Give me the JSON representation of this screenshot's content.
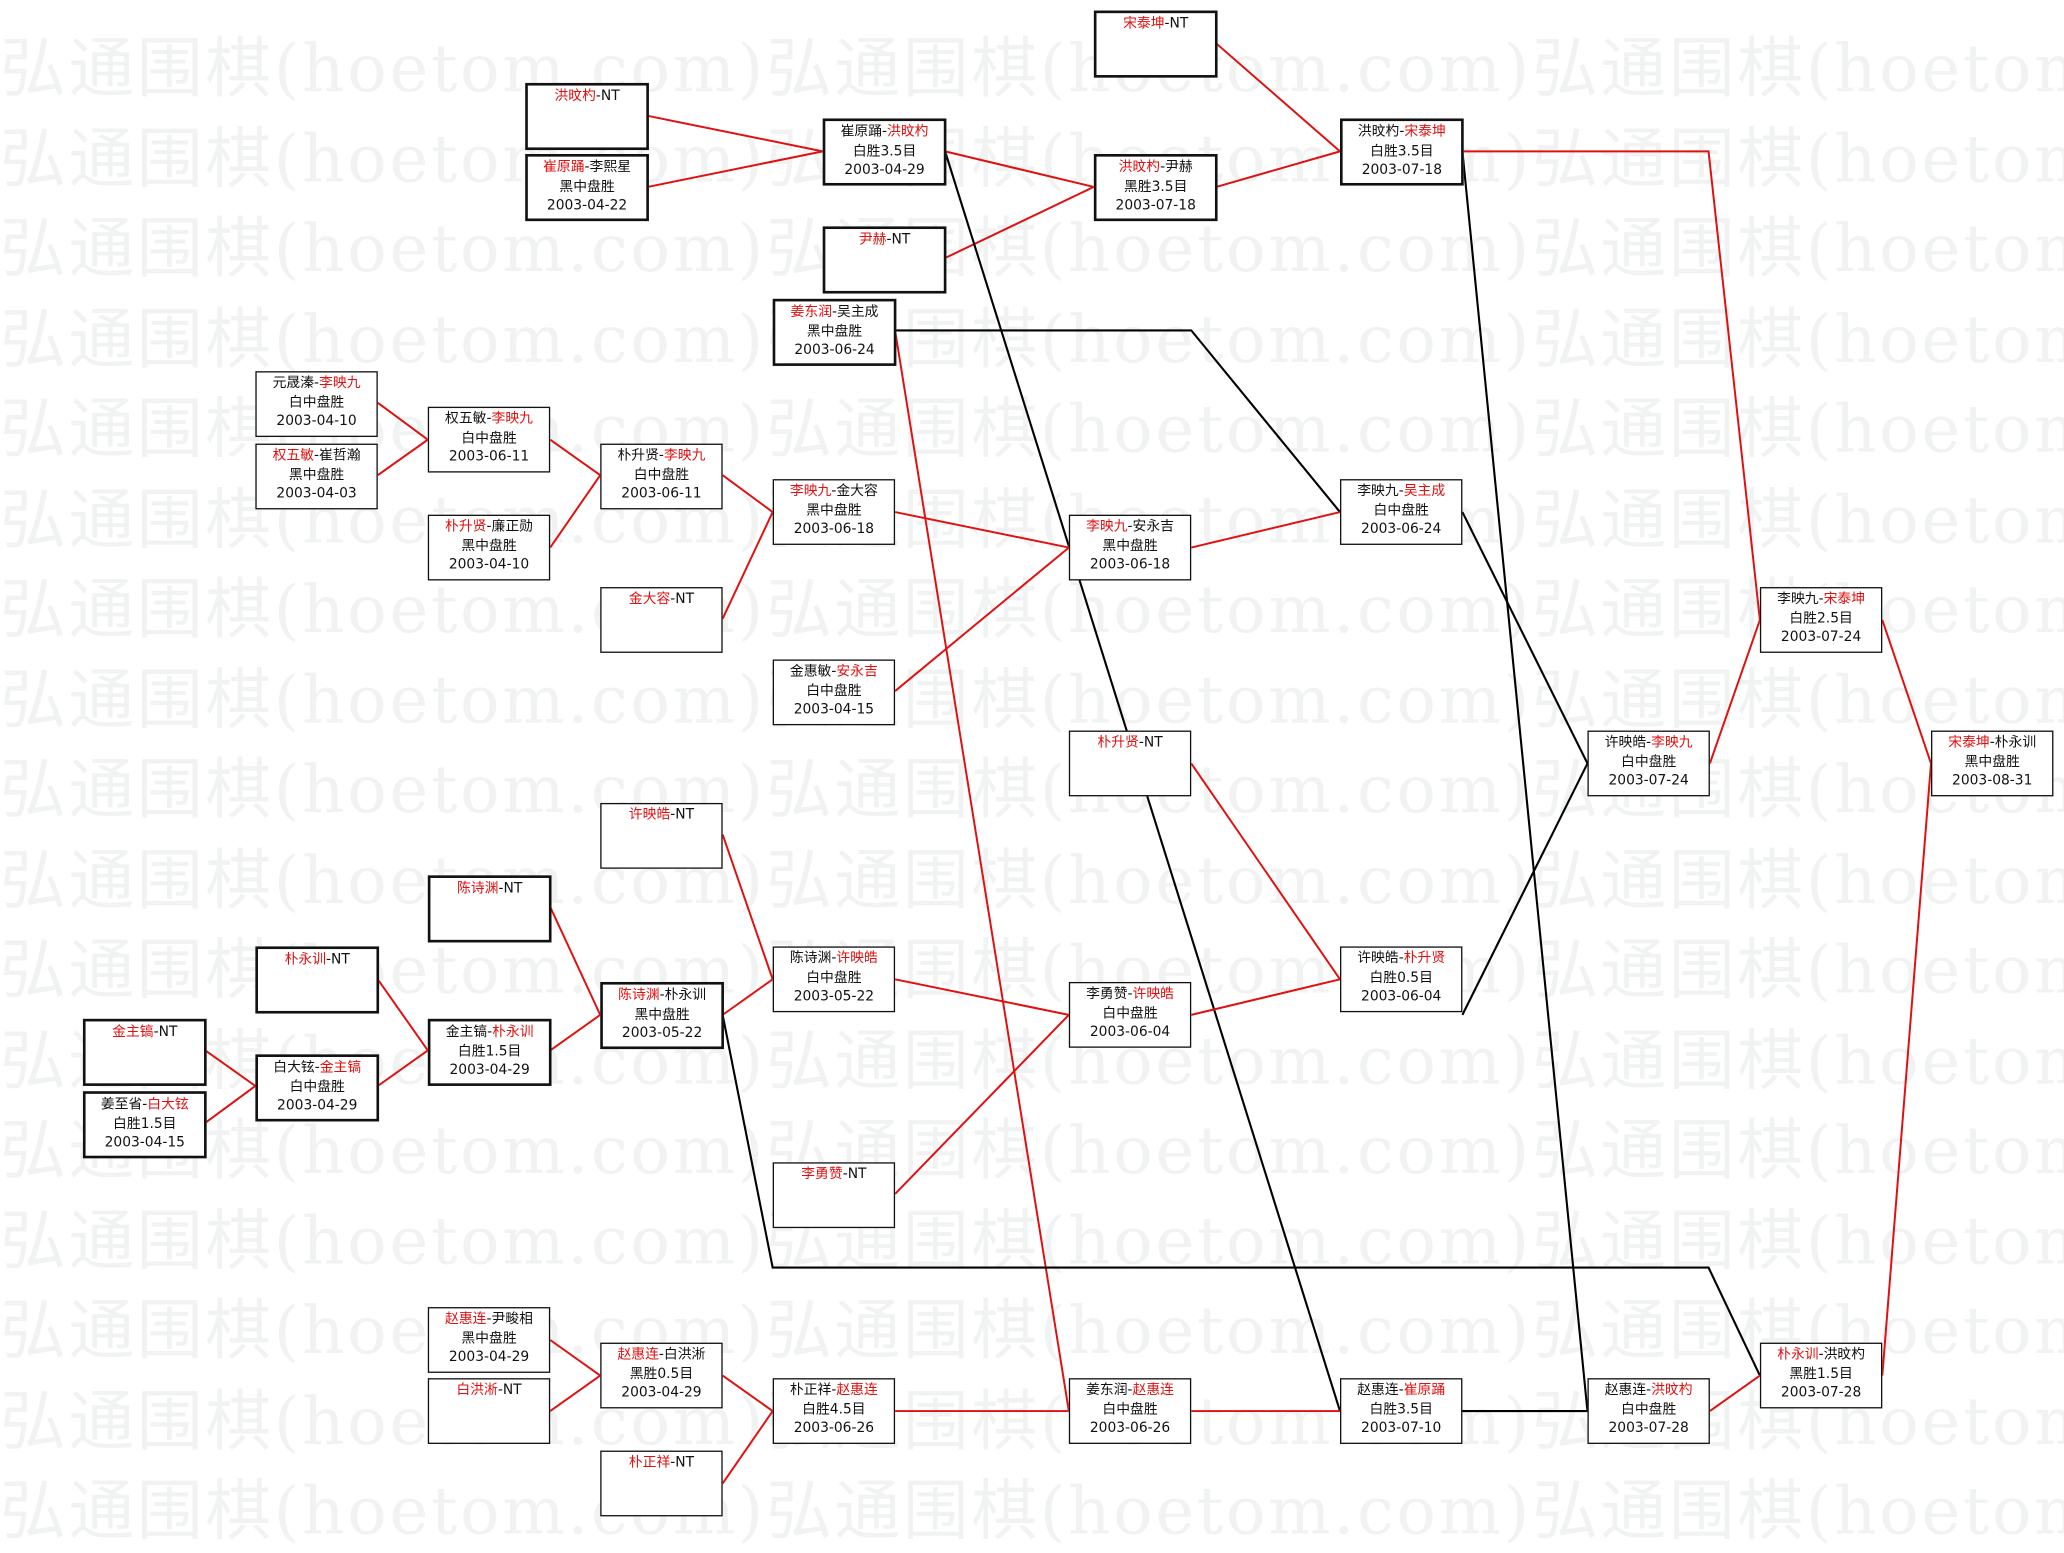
{
  "watermark": "弘通围棋(hoetom.com)弘通围棋(hoetom.com)弘通围棋(hoetom.com)弘通围棋(hoetom.com)",
  "colors": {
    "winner": "#e01010",
    "text": "#111111",
    "advance_line": "#e01010",
    "loser_line": "#000000"
  },
  "boxes": [
    {
      "id": "A",
      "p1": "宋泰坤",
      "p2": "NT",
      "winner": 1
    },
    {
      "id": "B",
      "p1": "洪旼杓",
      "p2": "NT",
      "winner": 1
    },
    {
      "id": "C",
      "p1": "崔原踊",
      "p2": "李熙星",
      "winner": 1,
      "result": "黑中盘胜",
      "date": "2003-04-22"
    },
    {
      "id": "D",
      "p1": "崔原踊",
      "p2": "洪旼杓",
      "winner": 2,
      "result": "白胜3.5目",
      "date": "2003-04-29"
    },
    {
      "id": "E",
      "p1": "洪旼杓",
      "p2": "尹赫",
      "winner": 1,
      "result": "黑胜3.5目",
      "date": "2003-07-18"
    },
    {
      "id": "F",
      "p1": "洪旼杓",
      "p2": "宋泰坤",
      "winner": 2,
      "result": "白胜3.5目",
      "date": "2003-07-18"
    },
    {
      "id": "G",
      "p1": "尹赫",
      "p2": "NT",
      "winner": 1
    },
    {
      "id": "H",
      "p1": "姜东润",
      "p2": "吴主成",
      "winner": 1,
      "result": "黑中盘胜",
      "date": "2003-06-24"
    },
    {
      "id": "I",
      "p1": "元晟溱",
      "p2": "李映九",
      "winner": 2,
      "result": "白中盘胜",
      "date": "2003-04-10"
    },
    {
      "id": "J",
      "p1": "权五敏",
      "p2": "崔哲瀚",
      "winner": 1,
      "result": "黑中盘胜",
      "date": "2003-04-03"
    },
    {
      "id": "K",
      "p1": "权五敏",
      "p2": "李映九",
      "winner": 2,
      "result": "白中盘胜",
      "date": "2003-06-11"
    },
    {
      "id": "L",
      "p1": "朴升贤",
      "p2": "廉正勋",
      "winner": 1,
      "result": "黑中盘胜",
      "date": "2003-04-10"
    },
    {
      "id": "M",
      "p1": "朴升贤",
      "p2": "李映九",
      "winner": 2,
      "result": "白中盘胜",
      "date": "2003-06-11"
    },
    {
      "id": "N",
      "p1": "李映九",
      "p2": "金大容",
      "winner": 1,
      "result": "黑中盘胜",
      "date": "2003-06-18"
    },
    {
      "id": "O",
      "p1": "金大容",
      "p2": "NT",
      "winner": 1
    },
    {
      "id": "P",
      "p1": "金惠敏",
      "p2": "安永吉",
      "winner": 2,
      "result": "白中盘胜",
      "date": "2003-04-15"
    },
    {
      "id": "Q",
      "p1": "李映九",
      "p2": "安永吉",
      "winner": 1,
      "result": "黑中盘胜",
      "date": "2003-06-18"
    },
    {
      "id": "R",
      "p1": "李映九",
      "p2": "吴主成",
      "winner": 2,
      "result": "白中盘胜",
      "date": "2003-06-24"
    },
    {
      "id": "S",
      "p1": "李映九",
      "p2": "宋泰坤",
      "winner": 2,
      "result": "白胜2.5目",
      "date": "2003-07-24"
    },
    {
      "id": "T",
      "p1": "许映皓",
      "p2": "李映九",
      "winner": 2,
      "result": "白中盘胜",
      "date": "2003-07-24"
    },
    {
      "id": "U",
      "p1": "宋泰坤",
      "p2": "朴永训",
      "winner": 1,
      "result": "黑中盘胜",
      "date": "2003-08-31"
    },
    {
      "id": "V",
      "p1": "朴升贤",
      "p2": "NT",
      "winner": 1
    },
    {
      "id": "W",
      "p1": "许映皓",
      "p2": "NT",
      "winner": 1
    },
    {
      "id": "X",
      "p1": "陈诗渊",
      "p2": "NT",
      "winner": 1
    },
    {
      "id": "Y",
      "p1": "朴永训",
      "p2": "NT",
      "winner": 1
    },
    {
      "id": "Z",
      "p1": "金主镐",
      "p2": "NT",
      "winner": 1
    },
    {
      "id": "AA",
      "p1": "姜至省",
      "p2": "白大铉",
      "winner": 2,
      "result": "白胜1.5目",
      "date": "2003-04-15"
    },
    {
      "id": "AB",
      "p1": "白大铉",
      "p2": "金主镐",
      "winner": 2,
      "result": "白中盘胜",
      "date": "2003-04-29"
    },
    {
      "id": "AC",
      "p1": "金主镐",
      "p2": "朴永训",
      "winner": 2,
      "result": "白胜1.5目",
      "date": "2003-04-29"
    },
    {
      "id": "AD",
      "p1": "陈诗渊",
      "p2": "朴永训",
      "winner": 1,
      "result": "黑中盘胜",
      "date": "2003-05-22"
    },
    {
      "id": "AE",
      "p1": "陈诗渊",
      "p2": "许映皓",
      "winner": 2,
      "result": "白中盘胜",
      "date": "2003-05-22"
    },
    {
      "id": "AF",
      "p1": "李勇赞",
      "p2": "许映皓",
      "winner": 2,
      "result": "白中盘胜",
      "date": "2003-06-04"
    },
    {
      "id": "AG",
      "p1": "许映皓",
      "p2": "朴升贤",
      "winner": 2,
      "result": "白胜0.5目",
      "date": "2003-06-04"
    },
    {
      "id": "AH",
      "p1": "李勇赞",
      "p2": "NT",
      "winner": 1
    },
    {
      "id": "AI",
      "p1": "赵惠连",
      "p2": "尹畯相",
      "winner": 1,
      "result": "黑中盘胜",
      "date": "2003-04-29"
    },
    {
      "id": "AJ",
      "p1": "白洪淅",
      "p2": "NT",
      "winner": 1
    },
    {
      "id": "AK",
      "p1": "赵惠连",
      "p2": "白洪淅",
      "winner": 1,
      "result": "黑胜0.5目",
      "date": "2003-04-29"
    },
    {
      "id": "AL",
      "p1": "朴正祥",
      "p2": "赵惠连",
      "winner": 2,
      "result": "白胜4.5目",
      "date": "2003-06-26"
    },
    {
      "id": "AM",
      "p1": "朴正祥",
      "p2": "NT",
      "winner": 1
    },
    {
      "id": "AN",
      "p1": "姜东润",
      "p2": "赵惠连",
      "winner": 2,
      "result": "白中盘胜",
      "date": "2003-06-26"
    },
    {
      "id": "AO",
      "p1": "赵惠连",
      "p2": "崔原踊",
      "winner": 2,
      "result": "白胜3.5目",
      "date": "2003-07-10"
    },
    {
      "id": "AP",
      "p1": "赵惠连",
      "p2": "洪旼杓",
      "winner": 2,
      "result": "白中盘胜",
      "date": "2003-07-28"
    },
    {
      "id": "AQ",
      "p1": "朴永训",
      "p2": "洪旼杓",
      "winner": 1,
      "result": "黑胜1.5目",
      "date": "2003-07-28"
    }
  ]
}
